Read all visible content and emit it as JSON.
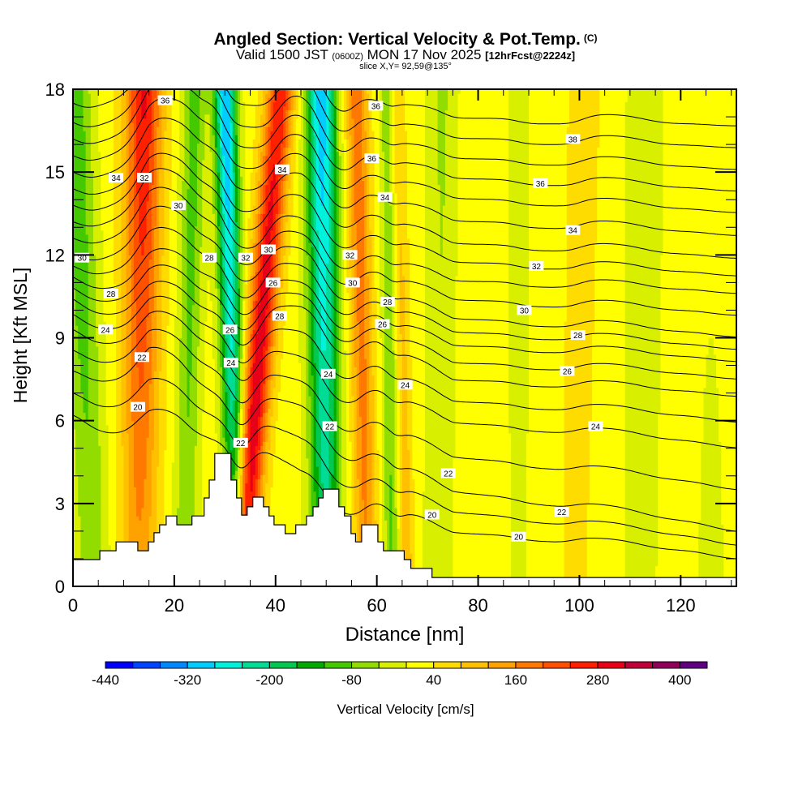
{
  "title": {
    "main": "Angled Section: Vertical Velocity & Pot.Temp.",
    "copyright": "(C)",
    "valid_prefix": "Valid 1500 JST",
    "utc": "(0600Z)",
    "date": "MON 17 Nov 2025",
    "forecast": "[12hrFcst@2224z]",
    "slice": "slice X,Y= 92,59@135°"
  },
  "chart_data": {
    "type": "heatmap",
    "title": "Angled Section: Vertical Velocity & Pot.Temp.",
    "xlabel": "Distance [nm]",
    "ylabel": "Height [Kft MSL]",
    "xlim": [
      0,
      131
    ],
    "ylim": [
      0,
      18
    ],
    "x_ticks": [
      0,
      20,
      40,
      60,
      80,
      100,
      120
    ],
    "x_tick_labels": [
      "0",
      "20",
      "40",
      "60",
      "80",
      "100",
      "120"
    ],
    "x_minor_step": 5,
    "y_ticks": [
      0,
      3,
      6,
      9,
      12,
      15,
      18
    ],
    "y_tick_labels": [
      "0",
      "3",
      "6",
      "9",
      "12",
      "15",
      "18"
    ],
    "y_minor_step": 1,
    "colorbar": {
      "label": "Vertical Velocity [cm/s]",
      "min": -440,
      "max": 440,
      "step": 40,
      "tick_values": [
        -440,
        -320,
        -200,
        -80,
        40,
        160,
        280,
        400
      ],
      "tick_labels": [
        "-440",
        "-320",
        "-200",
        "-80",
        "40",
        "160",
        "280",
        "400"
      ],
      "colors": [
        "#0000ff",
        "#0044ff",
        "#0088ff",
        "#00ccff",
        "#00f2dc",
        "#00dc96",
        "#00c850",
        "#00aa00",
        "#44c800",
        "#92dc00",
        "#d8f000",
        "#ffff00",
        "#ffdc00",
        "#ffc000",
        "#ffa200",
        "#ff7800",
        "#ff5000",
        "#ff2000",
        "#e80018",
        "#c00038",
        "#900058",
        "#600080"
      ]
    },
    "vertical_velocity_field": {
      "units": "cm/s",
      "background": 20,
      "bands": [
        {
          "center_bottom": 4,
          "center_top": 0,
          "halfwidth": 3.5,
          "amp_bottom": -80,
          "amp_top": -140
        },
        {
          "center_bottom": 13,
          "center_top": 14,
          "halfwidth": 3.6,
          "amp_bottom": 120,
          "amp_top": 270
        },
        {
          "center_bottom": 22,
          "center_top": 24,
          "halfwidth": 2.4,
          "amp_bottom": -90,
          "amp_top": -120
        },
        {
          "center_bottom": 32.5,
          "center_top": 30,
          "halfwidth": 2.2,
          "amp_bottom": -200,
          "amp_top": -340
        },
        {
          "center_bottom": 33,
          "center_top": 41,
          "halfwidth": 2.8,
          "amp_bottom": 320,
          "amp_top": 250
        },
        {
          "center_bottom": 50,
          "center_top": 49,
          "halfwidth": 3.0,
          "amp_bottom": -200,
          "amp_top": -330
        },
        {
          "center_bottom": 58,
          "center_top": 56,
          "halfwidth": 2.2,
          "amp_bottom": 140,
          "amp_top": 170
        },
        {
          "center_bottom": 63,
          "center_top": 62,
          "halfwidth": 1.6,
          "amp_bottom": -110,
          "amp_top": -80
        },
        {
          "center_bottom": 66,
          "center_top": 64,
          "halfwidth": 1.5,
          "amp_bottom": 90,
          "amp_top": 60
        },
        {
          "center_bottom": 72,
          "center_top": 73,
          "halfwidth": 3.0,
          "amp_bottom": -50,
          "amp_top": -65
        },
        {
          "center_bottom": 88,
          "center_top": 88,
          "halfwidth": 3.0,
          "amp_bottom": -25,
          "amp_top": -35
        },
        {
          "center_bottom": 99,
          "center_top": 101,
          "halfwidth": 3.0,
          "amp_bottom": 35,
          "amp_top": 60
        },
        {
          "center_bottom": 112,
          "center_top": 113,
          "halfwidth": 5.0,
          "amp_bottom": -30,
          "amp_top": -35
        },
        {
          "center_bottom": 126,
          "center_top": 126,
          "halfwidth": 4.0,
          "amp_bottom": -30,
          "amp_top": -10
        }
      ]
    },
    "potential_temperature": {
      "units": "°C",
      "anchor_distances": [
        0,
        15,
        30,
        45,
        60,
        75,
        131
      ],
      "levels": [
        {
          "value": 20,
          "heights": [
            6.2,
            6.0,
            5.0,
            3.5,
            3.0,
            2.3,
            1.8
          ]
        },
        {
          "value": 22,
          "heights": [
            7.8,
            8.2,
            6.5,
            5.8,
            4.8,
            3.8,
            2.8
          ]
        },
        {
          "value": 24,
          "heights": [
            9.3,
            9.4,
            8.2,
            7.6,
            7.2,
            6.4,
            5.9
          ]
        },
        {
          "value": 26,
          "heights": [
            10.4,
            10.4,
            9.4,
            9.4,
            9.0,
            8.0,
            7.8
          ]
        },
        {
          "value": 28,
          "heights": [
            11.2,
            11.5,
            10.6,
            10.3,
            10.0,
            9.3,
            9.1
          ]
        },
        {
          "value": 30,
          "heights": [
            12.0,
            13.0,
            11.8,
            11.5,
            11.0,
            10.3,
            10.0
          ]
        },
        {
          "value": 32,
          "heights": [
            13.2,
            14.3,
            13.0,
            12.6,
            12.2,
            11.7,
            11.6
          ]
        },
        {
          "value": 34,
          "heights": [
            14.4,
            15.3,
            14.2,
            14.2,
            13.7,
            13.1,
            12.9
          ]
        },
        {
          "value": 36,
          "heights": [
            15.6,
            16.6,
            15.8,
            15.6,
            15.2,
            14.8,
            14.6
          ]
        },
        {
          "value": 38,
          "heights": [
            16.8,
            17.8,
            17.3,
            17.0,
            16.6,
            16.3,
            16.2
          ]
        },
        {
          "value": 40,
          "heights": [
            18.2,
            19.2,
            18.8,
            18.6,
            18.0,
            17.8,
            17.8
          ]
        }
      ],
      "interval": 1,
      "displacement_scale": 0.0011,
      "labels": [
        {
          "text": "36",
          "x": 18.2,
          "y": 17.6
        },
        {
          "text": "34",
          "x": 8.5,
          "y": 14.8
        },
        {
          "text": "32",
          "x": 14.1,
          "y": 14.8
        },
        {
          "text": "30",
          "x": 20.8,
          "y": 13.8
        },
        {
          "text": "30",
          "x": 1.8,
          "y": 11.9
        },
        {
          "text": "28",
          "x": 7.5,
          "y": 10.6
        },
        {
          "text": "24",
          "x": 6.4,
          "y": 9.3
        },
        {
          "text": "22",
          "x": 13.6,
          "y": 8.3
        },
        {
          "text": "20",
          "x": 12.8,
          "y": 6.5
        },
        {
          "text": "28",
          "x": 26.9,
          "y": 11.9
        },
        {
          "text": "32",
          "x": 34.1,
          "y": 11.9
        },
        {
          "text": "30",
          "x": 38.6,
          "y": 12.2
        },
        {
          "text": "34",
          "x": 41.3,
          "y": 15.1
        },
        {
          "text": "26",
          "x": 39.5,
          "y": 11.0
        },
        {
          "text": "28",
          "x": 40.8,
          "y": 9.8
        },
        {
          "text": "26",
          "x": 31.0,
          "y": 9.3
        },
        {
          "text": "24",
          "x": 31.2,
          "y": 8.1
        },
        {
          "text": "22",
          "x": 33.1,
          "y": 5.2
        },
        {
          "text": "36",
          "x": 59.8,
          "y": 17.4
        },
        {
          "text": "36",
          "x": 59.0,
          "y": 15.5
        },
        {
          "text": "34",
          "x": 61.6,
          "y": 14.1
        },
        {
          "text": "32",
          "x": 54.7,
          "y": 12.0
        },
        {
          "text": "30",
          "x": 55.2,
          "y": 11.0
        },
        {
          "text": "28",
          "x": 62.1,
          "y": 10.3
        },
        {
          "text": "26",
          "x": 61.1,
          "y": 9.5
        },
        {
          "text": "24",
          "x": 50.4,
          "y": 7.7
        },
        {
          "text": "22",
          "x": 50.7,
          "y": 5.8
        },
        {
          "text": "24",
          "x": 65.6,
          "y": 7.3
        },
        {
          "text": "22",
          "x": 74.1,
          "y": 4.1
        },
        {
          "text": "20",
          "x": 70.9,
          "y": 2.6
        },
        {
          "text": "38",
          "x": 98.7,
          "y": 16.2
        },
        {
          "text": "36",
          "x": 92.3,
          "y": 14.6
        },
        {
          "text": "34",
          "x": 98.7,
          "y": 12.9
        },
        {
          "text": "32",
          "x": 91.5,
          "y": 11.6
        },
        {
          "text": "30",
          "x": 89.1,
          "y": 10.0
        },
        {
          "text": "28",
          "x": 99.7,
          "y": 9.1
        },
        {
          "text": "26",
          "x": 97.6,
          "y": 7.8
        },
        {
          "text": "24",
          "x": 103.2,
          "y": 5.8
        },
        {
          "text": "22",
          "x": 96.5,
          "y": 2.7
        },
        {
          "text": "20",
          "x": 88.0,
          "y": 1.8
        }
      ]
    },
    "terrain": {
      "description_units": "distance nm, height kft",
      "steps": [
        [
          0,
          0.97
        ],
        [
          5.3,
          1.29
        ],
        [
          8.5,
          1.61
        ],
        [
          12.8,
          1.29
        ],
        [
          14.9,
          1.61
        ],
        [
          16.0,
          1.94
        ],
        [
          17.1,
          2.23
        ],
        [
          18.4,
          2.55
        ],
        [
          20.5,
          2.23
        ],
        [
          23.5,
          2.55
        ],
        [
          25.9,
          3.2
        ],
        [
          26.9,
          3.85
        ],
        [
          28.0,
          4.81
        ],
        [
          31.2,
          3.85
        ],
        [
          32.3,
          3.2
        ],
        [
          33.3,
          2.58
        ],
        [
          34.4,
          2.88
        ],
        [
          35.5,
          3.23
        ],
        [
          37.6,
          2.88
        ],
        [
          38.7,
          2.55
        ],
        [
          39.7,
          2.23
        ],
        [
          41.9,
          1.91
        ],
        [
          44.0,
          2.23
        ],
        [
          46.1,
          2.55
        ],
        [
          47.4,
          2.88
        ],
        [
          48.5,
          3.2
        ],
        [
          49.4,
          3.52
        ],
        [
          52.5,
          2.88
        ],
        [
          53.6,
          2.55
        ],
        [
          54.9,
          1.91
        ],
        [
          55.8,
          1.61
        ],
        [
          57.0,
          2.23
        ],
        [
          60.2,
          1.61
        ],
        [
          61.3,
          1.29
        ],
        [
          65.4,
          0.97
        ],
        [
          66.7,
          0.65
        ],
        [
          70.9,
          0.32
        ]
      ]
    }
  }
}
